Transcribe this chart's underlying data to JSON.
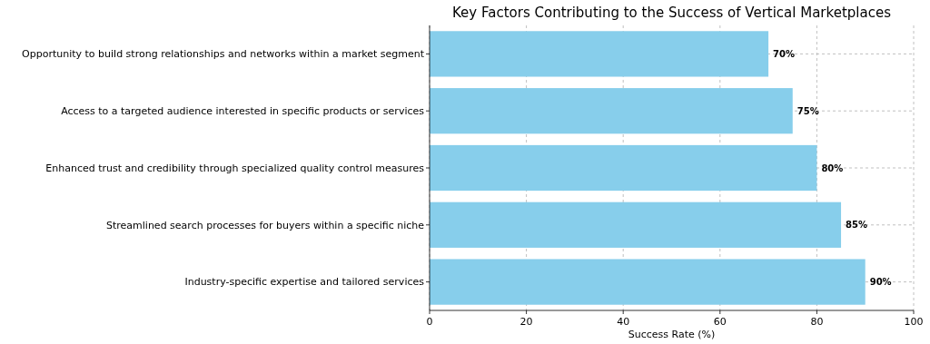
{
  "chart_data": {
    "type": "bar",
    "orientation": "horizontal",
    "title": "Key Factors Contributing to the Success of Vertical Marketplaces",
    "xlabel": "Success Rate (%)",
    "categories": [
      "Opportunity to build strong relationships and networks within a market segment",
      "Access to a targeted audience interested in specific products or services",
      "Enhanced trust and credibility through specialized quality control measures",
      "Streamlined search processes for buyers within a specific niche",
      "Industry-specific expertise and tailored services"
    ],
    "values": [
      70,
      75,
      80,
      85,
      90
    ],
    "value_labels": [
      "70%",
      "75%",
      "80%",
      "85%",
      "90%"
    ],
    "color": "#87ceeb",
    "xlim": [
      0,
      100
    ],
    "xticks": [
      0,
      20,
      40,
      60,
      80,
      100
    ],
    "grid": true
  }
}
